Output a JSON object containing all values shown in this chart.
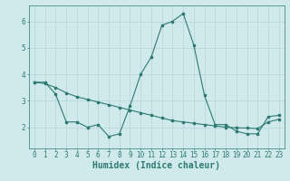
{
  "title": "",
  "xlabel": "Humidex (Indice chaleur)",
  "ylabel": "",
  "background_color": "#d0eaec",
  "grid_color": "#b8d8dc",
  "line_color": "#2d7a72",
  "x_values": [
    0,
    1,
    2,
    3,
    4,
    5,
    6,
    7,
    8,
    9,
    10,
    11,
    12,
    13,
    14,
    15,
    16,
    17,
    18,
    19,
    20,
    21,
    22,
    23
  ],
  "line1_y": [
    3.7,
    3.7,
    3.25,
    2.2,
    2.2,
    2.0,
    2.1,
    1.65,
    1.75,
    2.8,
    4.0,
    4.65,
    5.85,
    6.0,
    6.3,
    5.1,
    3.2,
    2.1,
    2.1,
    1.85,
    1.75,
    1.75,
    2.4,
    2.45
  ],
  "line2_y": [
    3.7,
    3.65,
    3.5,
    3.3,
    3.15,
    3.05,
    2.95,
    2.85,
    2.75,
    2.65,
    2.55,
    2.45,
    2.35,
    2.25,
    2.2,
    2.15,
    2.1,
    2.05,
    2.0,
    1.98,
    1.97,
    1.95,
    2.2,
    2.3
  ],
  "ylim": [
    1.2,
    6.6
  ],
  "xlim": [
    -0.5,
    23.5
  ],
  "yticks": [
    2,
    3,
    4,
    5,
    6
  ],
  "xticks": [
    0,
    1,
    2,
    3,
    4,
    5,
    6,
    7,
    8,
    9,
    10,
    11,
    12,
    13,
    14,
    15,
    16,
    17,
    18,
    19,
    20,
    21,
    22,
    23
  ],
  "tick_fontsize": 5.5,
  "xlabel_fontsize": 7.0
}
